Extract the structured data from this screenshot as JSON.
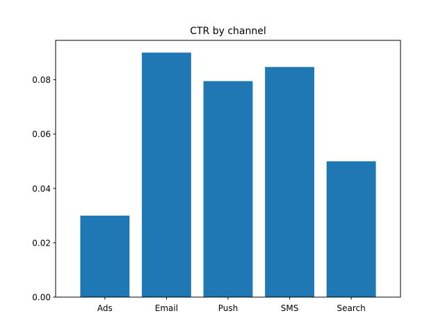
{
  "chart_data": {
    "type": "bar",
    "title": "CTR by channel",
    "xlabel": "",
    "ylabel": "",
    "categories": [
      "Ads",
      "Email",
      "Push",
      "SMS",
      "Search"
    ],
    "values": [
      0.03,
      0.09,
      0.0795,
      0.0847,
      0.05
    ],
    "ylim": [
      0,
      0.0945
    ],
    "yticks": [
      0.0,
      0.02,
      0.04,
      0.06,
      0.08
    ],
    "ytick_labels": [
      "0.00",
      "0.02",
      "0.04",
      "0.06",
      "0.08"
    ],
    "bar_color": "#1f77b4",
    "grid": false,
    "legend": "none"
  }
}
